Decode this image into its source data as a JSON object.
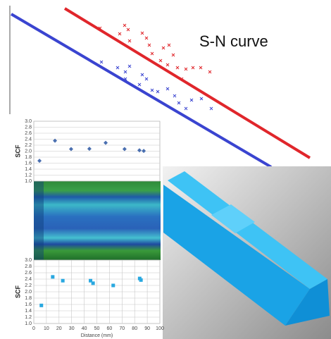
{
  "sn_curve": {
    "title": "S-N curve"
  },
  "chart_data": [
    {
      "type": "scatter",
      "ylabel": "SCF",
      "xlim": [
        0,
        100
      ],
      "ylim": [
        1,
        3
      ],
      "yticks": [
        {
          "value": 1,
          "label": "1.0"
        },
        1.2,
        1.4,
        1.6,
        1.8,
        {
          "value": 2,
          "label": "2.0"
        },
        2.2,
        2.4,
        2.6,
        2.8,
        {
          "value": 3,
          "label": "3.0"
        }
      ],
      "grid": true,
      "marker": "diamond",
      "color": "#4a6fb0",
      "x": [
        4.5,
        16.8,
        29.6,
        44.1,
        57,
        72,
        83.8,
        87.2
      ],
      "values": [
        1.68,
        2.35,
        2.07,
        2.08,
        2.28,
        2.07,
        2.03,
        2.01
      ]
    },
    {
      "type": "scatter",
      "ylabel": "SCF",
      "xlabel": "Distance (mm)",
      "xlim": [
        0,
        100
      ],
      "ylim": [
        1,
        3
      ],
      "xticks": [
        0,
        10,
        20,
        30,
        40,
        50,
        60,
        70,
        80,
        90,
        100
      ],
      "yticks": [
        {
          "value": 1,
          "label": "1.0"
        },
        1.2,
        1.4,
        1.6,
        1.8,
        {
          "value": 2,
          "label": "2.0"
        },
        2.2,
        2.4,
        2.6,
        2.8,
        {
          "value": 3,
          "label": "3.0"
        }
      ],
      "grid": true,
      "marker": "square",
      "color": "#29a8e0",
      "x": [
        6,
        15,
        23,
        45,
        47,
        63,
        84,
        85
      ],
      "values": [
        1.57,
        2.47,
        2.35,
        2.35,
        2.27,
        2.2,
        2.42,
        2.37
      ]
    }
  ]
}
